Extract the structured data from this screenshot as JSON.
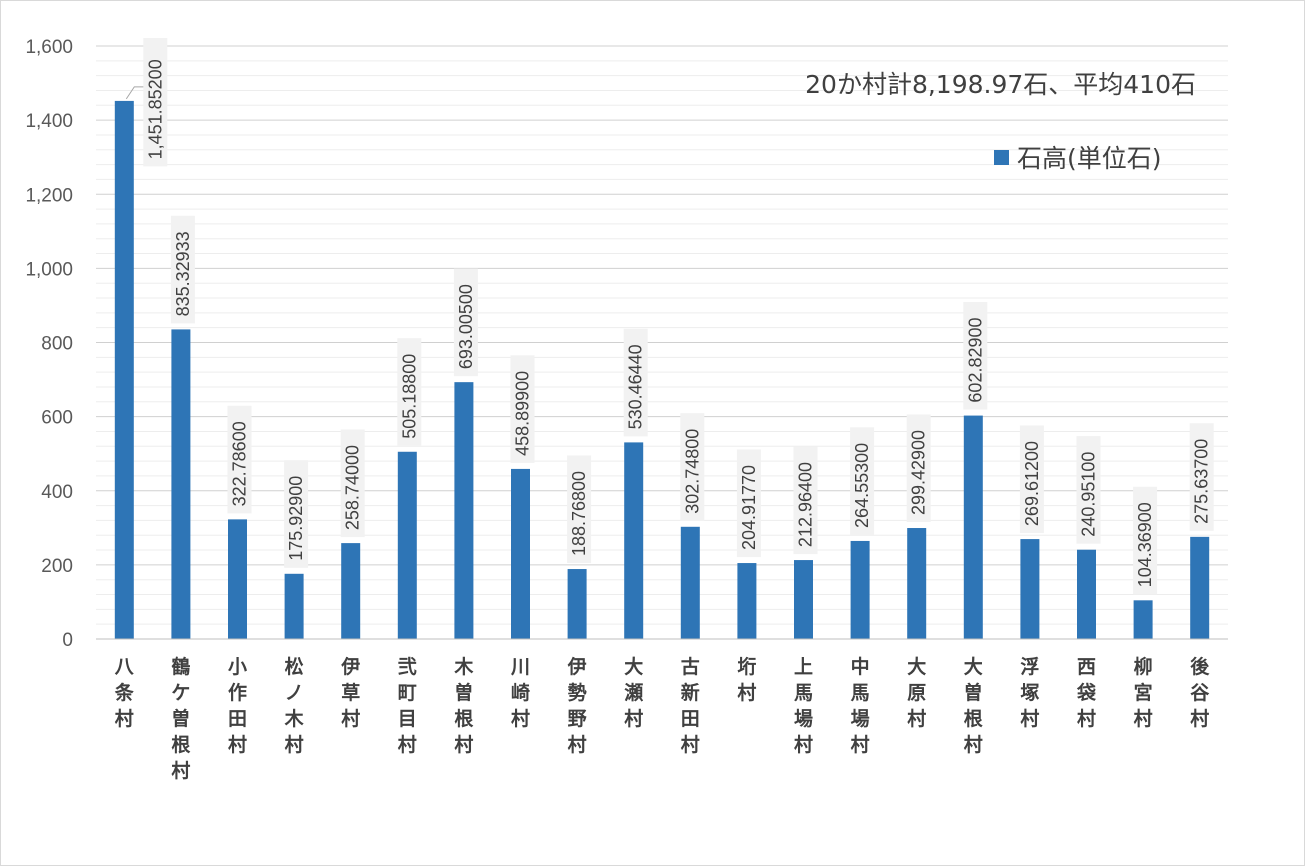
{
  "chart_data": {
    "type": "bar",
    "annotation": "20か村計8,198.97石、平均410石",
    "series": [
      {
        "name": "石高(単位石)",
        "values": [
          1451.852,
          835.32933,
          322.786,
          175.929,
          258.74,
          505.188,
          693.005,
          458.899,
          188.768,
          530.4644,
          302.748,
          204.9177,
          212.964,
          264.553,
          299.429,
          602.829,
          269.612,
          240.951,
          104.369,
          275.637
        ],
        "data_labels": [
          "1,451.85200",
          "835.32933",
          "322.78600",
          "175.92900",
          "258.74000",
          "505.18800",
          "693.00500",
          "458.89900",
          "188.76800",
          "530.46440",
          "302.74800",
          "204.91770",
          "212.96400",
          "264.55300",
          "299.42900",
          "602.82900",
          "269.61200",
          "240.95100",
          "104.36900",
          "275.63700"
        ]
      }
    ],
    "categories": [
      "八条村",
      "鶴ケ曽根村",
      "小作田村",
      "松ノ木村",
      "伊草村",
      "弐町目村",
      "木曽根村",
      "川崎村",
      "伊勢野村",
      "大瀬村",
      "古新田村",
      "垳村",
      "上馬場村",
      "中馬場村",
      "大原村",
      "大曽根村",
      "浮塚村",
      "西袋村",
      "柳宮村",
      "後谷村"
    ],
    "ylim": [
      0,
      1600
    ],
    "yticks": [
      0,
      200,
      400,
      600,
      800,
      1000,
      1200,
      1400,
      1600
    ],
    "ytick_labels": [
      "0",
      "200",
      "400",
      "600",
      "800",
      "1,000",
      "1,200",
      "1,400",
      "1,600"
    ],
    "grid": true,
    "legend_position": "top-right",
    "colors": {
      "bar": "#2E75B6",
      "grid": "#D9D9D9",
      "label_bg": "#F2F2F2"
    }
  }
}
